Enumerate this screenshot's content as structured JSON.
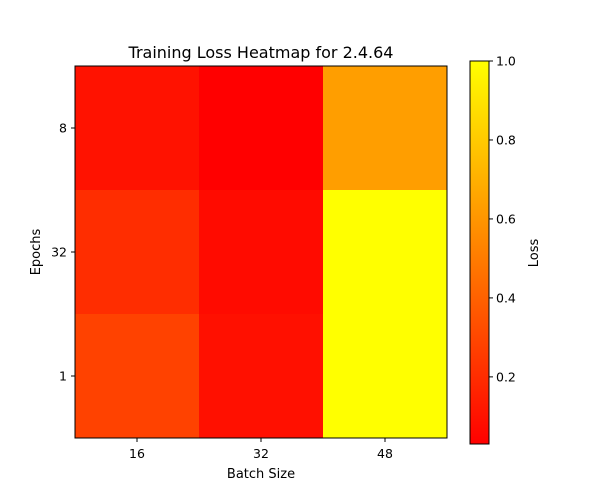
{
  "chart_data": {
    "type": "heatmap",
    "title": "Training Loss Heatmap for 2.4.64",
    "xlabel": "Batch Size",
    "ylabel": "Epochs",
    "x_categories": [
      "16",
      "32",
      "48"
    ],
    "y_categories": [
      "8",
      "32",
      "1"
    ],
    "values": [
      [
        0.1,
        0.03,
        0.63
      ],
      [
        0.2,
        0.07,
        1.0
      ],
      [
        0.28,
        0.09,
        1.0
      ]
    ],
    "colorbar": {
      "label": "Loss",
      "range": [
        0.03,
        1.0
      ],
      "ticks": [
        "0.2",
        "0.4",
        "0.6",
        "0.8",
        "1.0"
      ],
      "colormap": "autumn"
    }
  }
}
